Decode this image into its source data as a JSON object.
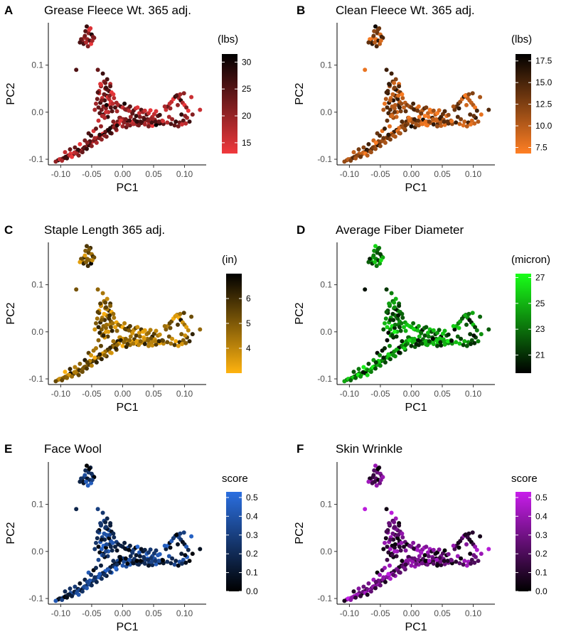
{
  "chart_data": [
    {
      "type": "scatter",
      "panel": "A",
      "title": "Grease Fleece Wt. 365 adj.",
      "xlabel": "PC1",
      "ylabel": "PC2",
      "xlim": [
        -0.12,
        0.135
      ],
      "ylim": [
        -0.112,
        0.19
      ],
      "xticks": [
        "-0.10",
        "-0.05",
        "0.00",
        "0.05",
        "0.10"
      ],
      "xtick_values": [
        -0.1,
        -0.05,
        0.0,
        0.05,
        0.1
      ],
      "yticks": [
        "-0.1",
        "0.0",
        "0.1"
      ],
      "ytick_values": [
        -0.1,
        0.0,
        0.1
      ],
      "legend": {
        "title": "(lbs)",
        "labels": [
          "30",
          "25",
          "20",
          "15"
        ],
        "label_values": [
          30,
          25,
          20,
          15
        ],
        "min": 13.0,
        "max": 31.5,
        "low_color": "#f0383c",
        "high_color": "#000000"
      },
      "value_range": [
        13.0,
        31.5
      ],
      "trait_seed": 11
    },
    {
      "type": "scatter",
      "panel": "B",
      "title": "Clean Fleece Wt. 365 adj.",
      "xlabel": "PC1",
      "ylabel": "PC2",
      "xlim": [
        -0.12,
        0.135
      ],
      "ylim": [
        -0.112,
        0.19
      ],
      "xticks": [
        "-0.10",
        "-0.05",
        "0.00",
        "0.05",
        "0.10"
      ],
      "xtick_values": [
        -0.1,
        -0.05,
        0.0,
        0.05,
        0.1
      ],
      "yticks": [
        "-0.1",
        "0.0",
        "0.1"
      ],
      "ytick_values": [
        -0.1,
        0.0,
        0.1
      ],
      "legend": {
        "title": "(lbs)",
        "labels": [
          "17.5",
          "15.0",
          "12.5",
          "10.0",
          "7.5"
        ],
        "label_values": [
          17.5,
          15.0,
          12.5,
          10.0,
          7.5
        ],
        "min": 6.8,
        "max": 18.3,
        "low_color": "#ff7f24",
        "high_color": "#000000"
      },
      "value_range": [
        6.8,
        18.3
      ],
      "trait_seed": 23
    },
    {
      "type": "scatter",
      "panel": "C",
      "title": "Staple Length 365 adj.",
      "xlabel": "PC1",
      "ylabel": "PC2",
      "xlim": [
        -0.12,
        0.135
      ],
      "ylim": [
        -0.112,
        0.19
      ],
      "xticks": [
        "-0.10",
        "-0.05",
        "0.00",
        "0.05",
        "0.10"
      ],
      "xtick_values": [
        -0.1,
        -0.05,
        0.0,
        0.05,
        0.1
      ],
      "yticks": [
        "-0.1",
        "0.0",
        "0.1"
      ],
      "ytick_values": [
        -0.1,
        0.0,
        0.1
      ],
      "legend": {
        "title": "(in)",
        "labels": [
          "6",
          "5",
          "4"
        ],
        "label_values": [
          6,
          5,
          4
        ],
        "min": 3.0,
        "max": 7.0,
        "low_color": "#ffb30f",
        "high_color": "#000000"
      },
      "value_range": [
        3.0,
        7.0
      ],
      "trait_seed": 37
    },
    {
      "type": "scatter",
      "panel": "D",
      "title": "Average Fiber Diameter",
      "xlabel": "PC1",
      "ylabel": "PC2",
      "xlim": [
        -0.12,
        0.135
      ],
      "ylim": [
        -0.112,
        0.19
      ],
      "xticks": [
        "-0.10",
        "-0.05",
        "0.00",
        "0.05",
        "0.10"
      ],
      "xtick_values": [
        -0.1,
        -0.05,
        0.0,
        0.05,
        0.1
      ],
      "yticks": [
        "-0.1",
        "0.0",
        "0.1"
      ],
      "ytick_values": [
        -0.1,
        0.0,
        0.1
      ],
      "legend": {
        "title": "(micron)",
        "labels": [
          "27",
          "25",
          "23",
          "21"
        ],
        "label_values": [
          27,
          25,
          23,
          21
        ],
        "min": 19.6,
        "max": 27.3,
        "low_color": "#000000",
        "high_color": "#19ff19"
      },
      "value_range": [
        19.6,
        27.3
      ],
      "trait_seed": 41
    },
    {
      "type": "scatter",
      "panel": "E",
      "title": "Face Wool",
      "xlabel": "PC1",
      "ylabel": "PC2",
      "xlim": [
        -0.12,
        0.135
      ],
      "ylim": [
        -0.112,
        0.19
      ],
      "xticks": [
        "-0.10",
        "-0.05",
        "0.00",
        "0.05",
        "0.10"
      ],
      "xtick_values": [
        -0.1,
        -0.05,
        0.0,
        0.05,
        0.1
      ],
      "yticks": [
        "-0.1",
        "0.0",
        "0.1"
      ],
      "ytick_values": [
        -0.1,
        0.0,
        0.1
      ],
      "legend": {
        "title": "score",
        "labels": [
          "0.5",
          "0.4",
          "0.3",
          "0.2",
          "0.1",
          "0.0"
        ],
        "label_values": [
          0.5,
          0.4,
          0.3,
          0.2,
          0.1,
          0.0
        ],
        "min": 0.0,
        "max": 0.53,
        "low_color": "#000000",
        "high_color": "#2b6fe0"
      },
      "value_range": [
        0.0,
        0.53
      ],
      "trait_seed": 53
    },
    {
      "type": "scatter",
      "panel": "F",
      "title": "Skin Wrinkle",
      "xlabel": "PC1",
      "ylabel": "PC2",
      "xlim": [
        -0.12,
        0.135
      ],
      "ylim": [
        -0.112,
        0.19
      ],
      "xticks": [
        "-0.10",
        "-0.05",
        "0.00",
        "0.05",
        "0.10"
      ],
      "xtick_values": [
        -0.1,
        -0.05,
        0.0,
        0.05,
        0.1
      ],
      "yticks": [
        "-0.1",
        "0.0",
        "0.1"
      ],
      "ytick_values": [
        -0.1,
        0.0,
        0.1
      ],
      "legend": {
        "title": "score",
        "labels": [
          "0.5",
          "0.4",
          "0.3",
          "0.2",
          "0.1",
          "0.0"
        ],
        "label_values": [
          0.5,
          0.4,
          0.3,
          0.2,
          0.1,
          0.0
        ],
        "min": 0.0,
        "max": 0.53,
        "low_color": "#000000",
        "high_color": "#c81eeb"
      },
      "value_range": [
        0.0,
        0.53
      ],
      "trait_seed": 67
    }
  ],
  "shared_points": {
    "pc1": [
      -0.058,
      -0.052,
      -0.06,
      -0.055,
      -0.062,
      -0.05,
      -0.065,
      -0.057,
      -0.048,
      -0.063,
      -0.053,
      -0.059,
      -0.046,
      -0.067,
      -0.056,
      -0.051,
      -0.061,
      -0.054,
      -0.069,
      -0.049,
      -0.075,
      -0.04,
      -0.032,
      -0.025,
      -0.03,
      -0.02,
      -0.035,
      -0.028,
      -0.022,
      -0.038,
      -0.026,
      -0.018,
      -0.033,
      -0.029,
      -0.024,
      -0.036,
      -0.021,
      -0.031,
      -0.027,
      -0.039,
      -0.019,
      -0.034,
      -0.023,
      -0.037,
      -0.016,
      -0.041,
      -0.03,
      -0.025,
      -0.02,
      -0.035,
      -0.028,
      -0.014,
      -0.043,
      -0.022,
      -0.038,
      -0.026,
      -0.012,
      -0.045,
      -0.031,
      -0.017,
      -0.033,
      -0.024,
      -0.029,
      -0.021,
      -0.036,
      -0.027,
      -0.015,
      -0.04,
      -0.019,
      -0.034,
      -0.01,
      -0.007,
      -0.003,
      0.0,
      0.003,
      0.006,
      0.009,
      0.012,
      0.015,
      0.018,
      0.021,
      0.024,
      0.027,
      0.03,
      0.033,
      0.036,
      0.039,
      0.042,
      0.045,
      0.048,
      0.051,
      0.054,
      0.057,
      0.06,
      -0.005,
      0.001,
      0.007,
      0.013,
      0.019,
      0.025,
      0.031,
      0.037,
      0.043,
      0.049,
      0.055,
      0.061,
      -0.009,
      0.004,
      0.01,
      0.016,
      0.022,
      0.028,
      0.034,
      0.04,
      0.046,
      0.052,
      0.058,
      0.064,
      0.0,
      0.006,
      0.012,
      0.018,
      0.024,
      0.03,
      0.036,
      0.042,
      0.048,
      0.054,
      0.06,
      0.066,
      0.07,
      0.073,
      0.076,
      0.079,
      0.082,
      0.085,
      0.088,
      0.091,
      0.094,
      0.097,
      0.1,
      0.103,
      0.106,
      0.075,
      0.08,
      0.086,
      0.092,
      0.098,
      0.104,
      0.072,
      0.078,
      0.084,
      0.09,
      0.096,
      0.102,
      0.108,
      0.087,
      0.093,
      0.099,
      0.111,
      0.068,
      0.095,
      0.101,
      0.113,
      0.125,
      0.077,
      0.089,
      -0.008,
      -0.012,
      -0.016,
      -0.02,
      -0.024,
      -0.028,
      -0.032,
      -0.036,
      -0.04,
      -0.044,
      -0.048,
      -0.052,
      -0.056,
      -0.06,
      -0.064,
      -0.068,
      -0.072,
      -0.076,
      -0.08,
      -0.084,
      -0.088,
      -0.092,
      -0.096,
      -0.1,
      -0.104,
      -0.108,
      -0.004,
      -0.014,
      -0.022,
      -0.03,
      -0.038,
      -0.046,
      -0.054,
      -0.062,
      -0.07,
      -0.078,
      -0.086,
      -0.094,
      -0.102,
      -0.01,
      -0.018,
      -0.026,
      -0.034,
      -0.042,
      -0.05,
      -0.058,
      -0.066,
      -0.074,
      -0.082,
      -0.09,
      -0.098,
      -0.006,
      -0.011,
      -0.02,
      -0.029,
      -0.037,
      -0.045,
      -0.053,
      -0.061,
      -0.069,
      -0.077,
      -0.085,
      -0.093,
      -0.003,
      0.002,
      0.008,
      0.014,
      0.02,
      0.026,
      -0.047,
      -0.055,
      -0.035,
      -0.043,
      -0.051,
      -0.039,
      -0.057,
      -0.027,
      -0.031,
      -0.015,
      -0.009,
      0.005,
      0.011,
      0.017,
      0.023,
      0.029,
      0.035,
      0.041,
      0.047,
      0.053,
      0.059,
      0.065,
      -0.071,
      -0.065
    ],
    "pc2": [
      0.182,
      0.178,
      0.172,
      0.168,
      0.158,
      0.165,
      0.15,
      0.155,
      0.16,
      0.145,
      0.152,
      0.148,
      0.158,
      0.155,
      0.14,
      0.145,
      0.162,
      0.175,
      0.148,
      0.152,
      0.09,
      0.09,
      0.082,
      0.07,
      0.065,
      0.06,
      0.055,
      0.05,
      0.045,
      0.04,
      0.035,
      0.042,
      0.03,
      0.025,
      0.032,
      0.02,
      0.015,
      0.012,
      0.008,
      0.01,
      0.022,
      0.005,
      0.0,
      -0.002,
      0.018,
      0.028,
      0.038,
      0.048,
      0.055,
      0.058,
      0.062,
      0.03,
      0.018,
      0.028,
      0.045,
      0.015,
      0.01,
      0.005,
      -0.005,
      0.002,
      -0.008,
      -0.01,
      -0.012,
      0.035,
      0.06,
      0.052,
      0.038,
      0.042,
      0.01,
      0.025,
      0.02,
      0.015,
      0.012,
      0.01,
      0.018,
      0.005,
      0.008,
      0.012,
      0.0,
      0.004,
      0.008,
      0.01,
      -0.002,
      0.005,
      0.0,
      0.003,
      -0.005,
      -0.002,
      0.004,
      -0.01,
      -0.004,
      0.002,
      -0.008,
      -0.006,
      -0.012,
      -0.015,
      -0.018,
      -0.01,
      -0.016,
      -0.02,
      -0.022,
      -0.018,
      -0.024,
      -0.02,
      -0.025,
      -0.022,
      0.002,
      0.006,
      0.003,
      -0.003,
      -0.008,
      -0.01,
      -0.012,
      -0.015,
      -0.014,
      -0.016,
      -0.02,
      -0.018,
      -0.03,
      -0.032,
      -0.028,
      -0.025,
      -0.027,
      -0.023,
      -0.026,
      -0.03,
      -0.029,
      -0.027,
      -0.024,
      -0.025,
      0.005,
      0.012,
      0.018,
      0.022,
      0.028,
      0.033,
      0.036,
      0.03,
      0.025,
      0.02,
      0.015,
      0.01,
      0.003,
      -0.01,
      -0.015,
      -0.02,
      -0.022,
      -0.018,
      -0.012,
      -0.022,
      -0.025,
      -0.028,
      -0.03,
      -0.026,
      -0.024,
      -0.02,
      0.035,
      0.038,
      0.04,
      0.032,
      0.012,
      -0.005,
      -0.008,
      -0.005,
      0.005,
      0.008,
      0.015,
      -0.02,
      -0.026,
      -0.03,
      -0.034,
      -0.038,
      -0.042,
      -0.046,
      -0.05,
      -0.054,
      -0.058,
      -0.062,
      -0.066,
      -0.07,
      -0.074,
      -0.078,
      -0.082,
      -0.08,
      -0.085,
      -0.09,
      -0.088,
      -0.092,
      -0.095,
      -0.098,
      -0.1,
      -0.102,
      -0.105,
      -0.012,
      -0.032,
      -0.04,
      -0.048,
      -0.055,
      -0.06,
      -0.07,
      -0.075,
      -0.082,
      -0.086,
      -0.092,
      -0.097,
      -0.1,
      -0.038,
      -0.045,
      -0.052,
      -0.058,
      -0.065,
      -0.072,
      -0.078,
      -0.084,
      -0.088,
      -0.095,
      -0.098,
      -0.103,
      -0.025,
      -0.035,
      -0.044,
      -0.05,
      -0.048,
      -0.055,
      -0.062,
      -0.06,
      -0.068,
      -0.075,
      -0.079,
      -0.085,
      -0.018,
      -0.022,
      -0.026,
      -0.02,
      -0.024,
      -0.028,
      -0.04,
      -0.045,
      -0.03,
      -0.035,
      -0.05,
      -0.018,
      -0.065,
      0.0,
      -0.008,
      -0.02,
      -0.028,
      -0.015,
      -0.018,
      -0.025,
      -0.02,
      -0.02,
      -0.015,
      -0.018,
      -0.022,
      -0.02,
      -0.02,
      -0.019,
      -0.092,
      -0.085
    ]
  }
}
